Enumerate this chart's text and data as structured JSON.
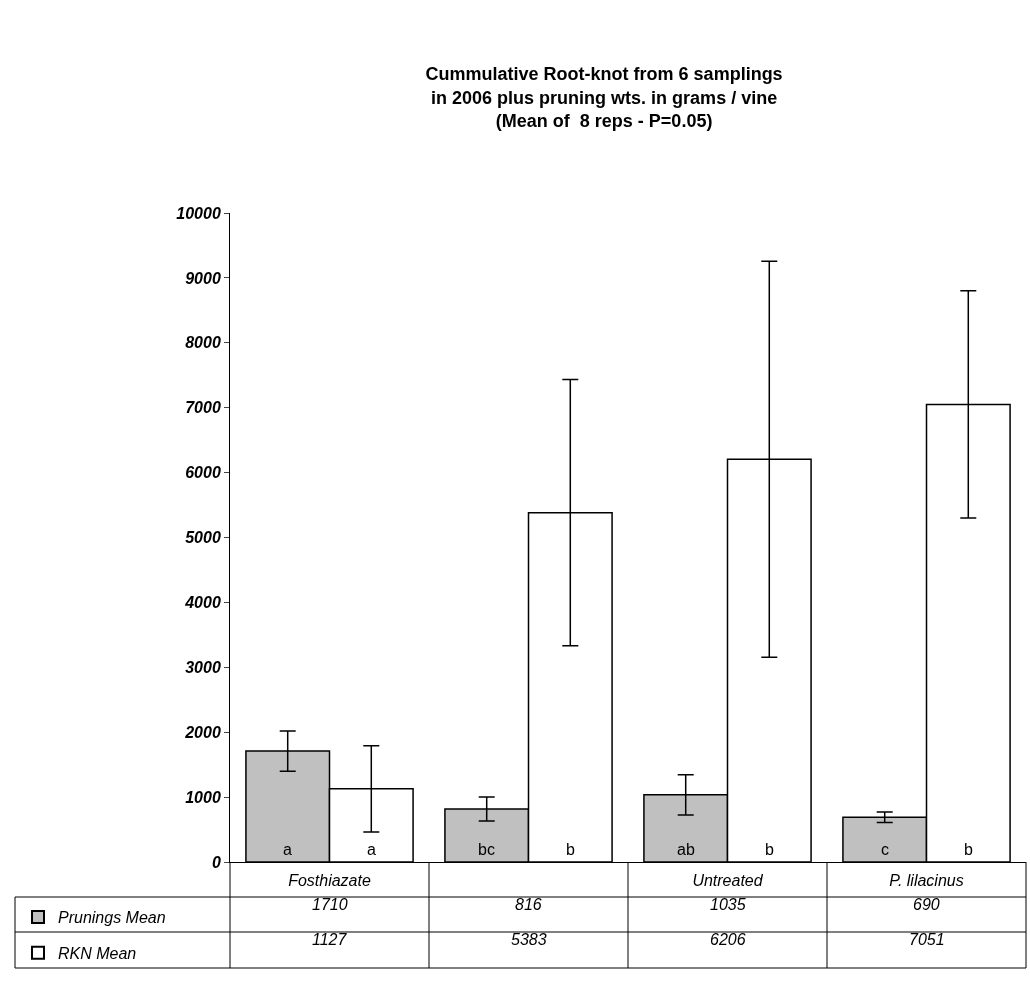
{
  "chart_data": {
    "type": "bar",
    "title": "Cummulative Root-knot from 6 samplings\nin 2006 plus pruning wts. in grams / vine\n(Mean of  8 reps - P=0.05)",
    "categories": [
      "Fosthiazate",
      null,
      "Untreated",
      "P. lilacinus"
    ],
    "series": [
      {
        "name": "Prunings Mean",
        "color": "#c0c0c0",
        "values": [
          1710,
          816,
          1035,
          690
        ],
        "errors": [
          310,
          185,
          310,
          80
        ],
        "value_labels": [
          "1710",
          "816",
          "1035",
          "690"
        ]
      },
      {
        "name": "RKN Mean",
        "color": "#ffffff",
        "values": [
          1127,
          5383,
          6206,
          7051
        ],
        "errors": [
          665,
          2050,
          3050,
          1750
        ],
        "value_labels": [
          "1127",
          "5383",
          "6206",
          "7051"
        ]
      }
    ],
    "annotations": [
      {
        "text": "a",
        "x": "Fosthiazate",
        "y": 0
      },
      {
        "text": "a",
        "x": "Fosthiazate",
        "y": 0
      },
      {
        "text": "bc",
        "y": 0
      },
      {
        "text": "b",
        "y": 0
      },
      {
        "text": "ab",
        "x": "Untreated",
        "y": 0
      },
      {
        "text": "b",
        "x": "Untreated",
        "y": 0
      },
      {
        "text": "c",
        "x": "P. lilacinus",
        "y": 0
      },
      {
        "text": "b",
        "x": "P. lilacinus",
        "y": 0
      }
    ],
    "ylim": [
      0,
      10000
    ],
    "yticks": [
      0,
      1000,
      2000,
      3000,
      4000,
      5000,
      6000,
      7000,
      8000,
      9000,
      10000
    ],
    "grid": false,
    "legend": "bottom left"
  }
}
